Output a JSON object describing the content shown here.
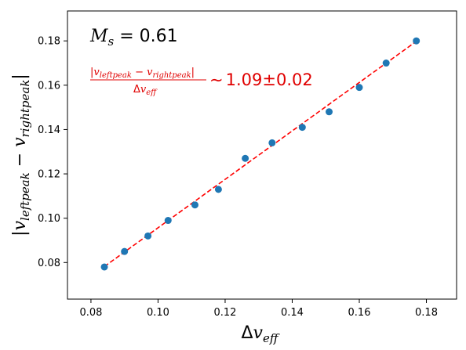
{
  "chart_data": {
    "type": "scatter",
    "title": "",
    "xlabel": {
      "prefix": "Δ",
      "main": "v",
      "sub": "eff"
    },
    "ylabel": {
      "open": "|",
      "v1": "v",
      "sub1": "leftpeak",
      "minus": " − ",
      "v2": "v",
      "sub2": "rightpeak",
      "close": "|"
    },
    "xlim": [
      0.073,
      0.189
    ],
    "ylim": [
      0.0635,
      0.1935
    ],
    "xticks": [
      0.08,
      0.1,
      0.12,
      0.14,
      0.16,
      0.18
    ],
    "xtick_labels": [
      "0.08",
      "0.10",
      "0.12",
      "0.14",
      "0.16",
      "0.18"
    ],
    "yticks": [
      0.08,
      0.1,
      0.12,
      0.14,
      0.16,
      0.18
    ],
    "ytick_labels": [
      "0.08",
      "0.10",
      "0.12",
      "0.14",
      "0.16",
      "0.18"
    ],
    "grid": false,
    "colors": {
      "points": "#1f77b4",
      "fit": "#ff0000",
      "annotation_fit": "#e00000",
      "annotation_ms": "#000000"
    },
    "series": [
      {
        "kind": "points",
        "x": [
          0.084,
          0.09,
          0.097,
          0.103,
          0.111,
          0.118,
          0.126,
          0.134,
          0.143,
          0.151,
          0.16,
          0.168,
          0.177
        ],
        "y": [
          0.078,
          0.085,
          0.092,
          0.099,
          0.106,
          0.113,
          0.127,
          0.134,
          0.141,
          0.148,
          0.159,
          0.17,
          0.18
        ]
      },
      {
        "kind": "fit-line",
        "style": "dashed",
        "x": [
          0.084,
          0.177
        ],
        "y": [
          0.0782,
          0.1798
        ]
      }
    ],
    "annotations": {
      "ms": {
        "symbol": "M",
        "sub": "s",
        "eq": " = ",
        "value": "0.61"
      },
      "ratio": {
        "num_open": "|",
        "num_v1": "v",
        "num_sub1": "leftpeak",
        "num_minus": " − ",
        "num_v2": "v",
        "num_sub2": "rightpeak",
        "num_close": "|",
        "den_prefix": "Δ",
        "den_v": "v",
        "den_sub": "eff",
        "sim": "∼",
        "value": "1.09±0.02"
      }
    }
  }
}
